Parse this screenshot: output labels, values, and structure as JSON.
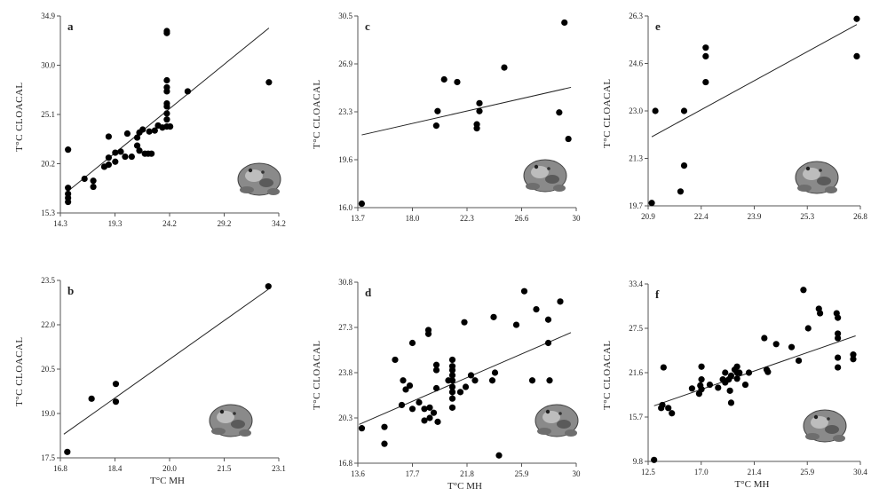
{
  "chart_data": [
    {
      "type": "scatter",
      "panel": "a",
      "ylabel": "T°C CLOACAL",
      "xlabel": "",
      "xticks": [
        "14.3",
        "19.3",
        "24.2",
        "29.2",
        "34.2"
      ],
      "yticks": [
        "15.3",
        "20.2",
        "25.1",
        "30.0",
        "34.9"
      ],
      "xlim": [
        14.3,
        34.2
      ],
      "ylim": [
        15.3,
        34.9
      ],
      "trendline": [
        [
          14.8,
          17.3
        ],
        [
          33.3,
          33.7
        ]
      ],
      "points": [
        [
          15.0,
          21.6
        ],
        [
          15.0,
          17.8
        ],
        [
          15.0,
          17.2
        ],
        [
          15.0,
          16.8
        ],
        [
          15.0,
          16.4
        ],
        [
          16.5,
          18.7
        ],
        [
          17.3,
          17.9
        ],
        [
          17.3,
          18.5
        ],
        [
          18.3,
          19.9
        ],
        [
          18.7,
          20.1
        ],
        [
          18.7,
          20.8
        ],
        [
          18.7,
          22.9
        ],
        [
          19.3,
          20.4
        ],
        [
          19.3,
          21.3
        ],
        [
          19.8,
          21.4
        ],
        [
          20.2,
          20.9
        ],
        [
          20.4,
          23.2
        ],
        [
          20.8,
          20.9
        ],
        [
          21.3,
          22.0
        ],
        [
          21.3,
          22.8
        ],
        [
          21.5,
          23.3
        ],
        [
          21.5,
          21.5
        ],
        [
          21.8,
          23.6
        ],
        [
          22.0,
          21.2
        ],
        [
          22.3,
          21.2
        ],
        [
          22.4,
          23.4
        ],
        [
          22.6,
          21.2
        ],
        [
          22.9,
          23.5
        ],
        [
          23.6,
          23.8
        ],
        [
          24.0,
          33.4
        ],
        [
          24.0,
          33.2
        ],
        [
          24.0,
          28.5
        ],
        [
          24.0,
          27.8
        ],
        [
          24.0,
          27.4
        ],
        [
          24.0,
          26.2
        ],
        [
          24.0,
          25.9
        ],
        [
          24.0,
          25.2
        ],
        [
          24.0,
          24.6
        ],
        [
          24.0,
          23.9
        ],
        [
          23.2,
          24.0
        ],
        [
          24.3,
          23.9
        ],
        [
          25.9,
          27.4
        ],
        [
          33.3,
          28.3
        ]
      ]
    },
    {
      "type": "scatter",
      "panel": "b",
      "ylabel": "T°C CLOACAL",
      "xlabel": "T°C MH",
      "xticks": [
        "16.8",
        "18.4",
        "20.0",
        "21.5",
        "23.1"
      ],
      "yticks": [
        "17.5",
        "19.0",
        "20.5",
        "22.0",
        "23.5"
      ],
      "xlim": [
        16.8,
        23.1
      ],
      "ylim": [
        17.5,
        23.5
      ],
      "trendline": [
        [
          16.9,
          18.3
        ],
        [
          22.8,
          23.2
        ]
      ],
      "points": [
        [
          17.0,
          17.7
        ],
        [
          17.7,
          19.5
        ],
        [
          18.4,
          20.0
        ],
        [
          18.4,
          19.4
        ],
        [
          22.8,
          23.3
        ]
      ]
    },
    {
      "type": "scatter",
      "panel": "c",
      "ylabel": "T°C CLOACAL",
      "xlabel": "",
      "xticks": [
        "13.7",
        "18.0",
        "22.3",
        "26.6",
        "30"
      ],
      "yticks": [
        "16.0",
        "19.6",
        "23.3",
        "26.9",
        "30.5"
      ],
      "xlim": [
        13.7,
        30.4
      ],
      "ylim": [
        16.0,
        30.5
      ],
      "trendline": [
        [
          14.0,
          21.5
        ],
        [
          30.0,
          25.1
        ]
      ],
      "points": [
        [
          14.0,
          16.3
        ],
        [
          19.7,
          22.2
        ],
        [
          19.8,
          23.3
        ],
        [
          20.3,
          25.7
        ],
        [
          21.3,
          25.5
        ],
        [
          22.8,
          22.3
        ],
        [
          22.8,
          22.0
        ],
        [
          23.0,
          23.3
        ],
        [
          23.0,
          23.9
        ],
        [
          24.9,
          26.6
        ],
        [
          29.1,
          23.2
        ],
        [
          29.5,
          30.0
        ],
        [
          29.8,
          21.2
        ]
      ]
    },
    {
      "type": "scatter",
      "panel": "d",
      "ylabel": "T°C CLOACAL",
      "xlabel": "T°C MH",
      "xticks": [
        "13.6",
        "17.7",
        "21.8",
        "25.9",
        "30"
      ],
      "yticks": [
        "16.8",
        "20.3",
        "23.8",
        "27.3",
        "30.8"
      ],
      "xlim": [
        13.6,
        30.0
      ],
      "ylim": [
        16.8,
        30.8
      ],
      "trendline": [
        [
          13.7,
          19.8
        ],
        [
          29.6,
          26.9
        ]
      ],
      "points": [
        [
          13.9,
          19.5
        ],
        [
          15.6,
          19.6
        ],
        [
          15.6,
          18.3
        ],
        [
          16.4,
          24.8
        ],
        [
          16.9,
          21.3
        ],
        [
          17.0,
          23.2
        ],
        [
          17.2,
          22.5
        ],
        [
          17.5,
          22.8
        ],
        [
          17.7,
          26.1
        ],
        [
          17.7,
          21.0
        ],
        [
          18.2,
          21.5
        ],
        [
          18.6,
          20.1
        ],
        [
          18.6,
          21.0
        ],
        [
          18.9,
          27.1
        ],
        [
          18.9,
          26.8
        ],
        [
          19.0,
          20.3
        ],
        [
          19.0,
          21.1
        ],
        [
          19.3,
          20.7
        ],
        [
          19.5,
          22.6
        ],
        [
          19.5,
          24.0
        ],
        [
          19.5,
          24.4
        ],
        [
          19.6,
          20.0
        ],
        [
          20.4,
          23.2
        ],
        [
          20.7,
          21.1
        ],
        [
          20.7,
          21.8
        ],
        [
          20.7,
          22.3
        ],
        [
          20.7,
          22.7
        ],
        [
          20.7,
          23.2
        ],
        [
          20.7,
          23.6
        ],
        [
          20.7,
          24.0
        ],
        [
          20.7,
          24.3
        ],
        [
          20.7,
          24.8
        ],
        [
          21.3,
          22.3
        ],
        [
          21.6,
          27.7
        ],
        [
          21.7,
          22.7
        ],
        [
          22.1,
          23.6
        ],
        [
          22.4,
          23.2
        ],
        [
          23.7,
          23.2
        ],
        [
          23.8,
          28.1
        ],
        [
          23.9,
          23.8
        ],
        [
          24.2,
          17.4
        ],
        [
          25.5,
          27.5
        ],
        [
          26.1,
          30.1
        ],
        [
          26.7,
          23.2
        ],
        [
          27.0,
          28.7
        ],
        [
          27.9,
          26.1
        ],
        [
          27.9,
          27.9
        ],
        [
          28.0,
          23.2
        ],
        [
          28.8,
          29.3
        ]
      ]
    },
    {
      "type": "scatter",
      "panel": "e",
      "ylabel": "T°C CLOACAL",
      "xlabel": "",
      "xticks": [
        "20.9",
        "22.4",
        "23.9",
        "25.3",
        "26.8"
      ],
      "yticks": [
        "19.7",
        "21.3",
        "23.0",
        "24.6",
        "26.3"
      ],
      "xlim": [
        20.9,
        26.8
      ],
      "ylim": [
        19.7,
        26.3
      ],
      "trendline": [
        [
          21.0,
          22.1
        ],
        [
          26.7,
          26.0
        ]
      ],
      "points": [
        [
          21.0,
          19.8
        ],
        [
          21.1,
          23.0
        ],
        [
          21.8,
          20.2
        ],
        [
          21.9,
          23.0
        ],
        [
          21.9,
          21.1
        ],
        [
          22.5,
          25.2
        ],
        [
          22.5,
          24.9
        ],
        [
          22.5,
          24.0
        ],
        [
          26.7,
          26.2
        ],
        [
          26.7,
          24.9
        ]
      ]
    },
    {
      "type": "scatter",
      "panel": "f",
      "ylabel": "T°C CLOACAL",
      "xlabel": "T°C MH",
      "xticks": [
        "12.5",
        "17.0",
        "21.4",
        "25.9",
        "30.4"
      ],
      "yticks": [
        "9.8",
        "15.7",
        "21.6",
        "27.5",
        "33.4"
      ],
      "xlim": [
        12.5,
        30.4
      ],
      "ylim": [
        9.8,
        33.4
      ],
      "trendline": [
        [
          13.0,
          17.2
        ],
        [
          30.0,
          26.5
        ]
      ],
      "points": [
        [
          13.0,
          10.0
        ],
        [
          13.6,
          16.9
        ],
        [
          13.7,
          17.3
        ],
        [
          13.8,
          22.3
        ],
        [
          14.2,
          16.9
        ],
        [
          14.5,
          16.2
        ],
        [
          16.2,
          19.5
        ],
        [
          16.8,
          18.8
        ],
        [
          16.9,
          19.9
        ],
        [
          17.0,
          19.4
        ],
        [
          17.0,
          20.7
        ],
        [
          17.0,
          22.4
        ],
        [
          17.7,
          20.0
        ],
        [
          18.4,
          19.6
        ],
        [
          18.8,
          20.7
        ],
        [
          19.0,
          20.3
        ],
        [
          19.0,
          21.6
        ],
        [
          19.3,
          20.7
        ],
        [
          19.4,
          19.2
        ],
        [
          19.5,
          17.6
        ],
        [
          19.5,
          21.2
        ],
        [
          19.8,
          22.0
        ],
        [
          20.0,
          20.8
        ],
        [
          20.0,
          21.6
        ],
        [
          20.0,
          22.4
        ],
        [
          20.2,
          21.6
        ],
        [
          20.7,
          20.0
        ],
        [
          21.0,
          21.6
        ],
        [
          22.3,
          26.2
        ],
        [
          22.5,
          22.0
        ],
        [
          22.6,
          21.7
        ],
        [
          23.3,
          25.4
        ],
        [
          24.6,
          25.0
        ],
        [
          25.2,
          23.2
        ],
        [
          25.6,
          32.6
        ],
        [
          26.0,
          27.5
        ],
        [
          26.9,
          30.1
        ],
        [
          27.0,
          29.5
        ],
        [
          28.4,
          29.5
        ],
        [
          28.5,
          28.9
        ],
        [
          28.5,
          26.8
        ],
        [
          28.5,
          26.2
        ],
        [
          28.5,
          23.6
        ],
        [
          28.5,
          22.3
        ],
        [
          29.8,
          24.0
        ],
        [
          29.8,
          23.4
        ]
      ]
    }
  ],
  "frog_icon": "frog-photo-icon",
  "colors": {
    "marker": "#000000",
    "axis": "#555555",
    "line": "#222222"
  }
}
